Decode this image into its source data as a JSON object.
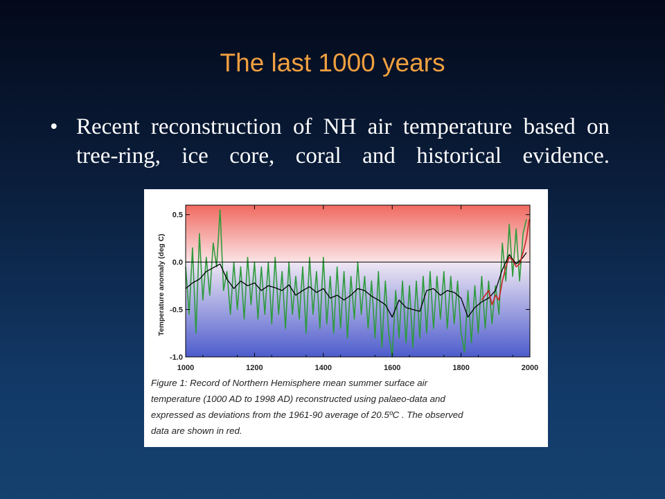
{
  "slide": {
    "title": "The last 1000 years",
    "bullet": "Recent reconstruction of NH air temperature based on tree-ring, ice core, coral and historical evidence.",
    "bullet_symbol": "•"
  },
  "figure": {
    "caption_lines": [
      "Figure 1:  Record of Northern Hemisphere mean summer surface air",
      "temperature (1000 AD to 1998 AD) reconstructed using palaeo-data and",
      "expressed as deviations from the 1961-90 average of 20.5ºC . The observed",
      "data are shown in red."
    ]
  },
  "chart_data": {
    "type": "line",
    "xlabel": "",
    "ylabel": "Temperature anomaly (deg C)",
    "xlim": [
      1000,
      2000
    ],
    "ylim": [
      -1.0,
      0.6
    ],
    "x_ticks": [
      "1000",
      "1200",
      "1400",
      "1600",
      "1800",
      "2000"
    ],
    "y_ticks": [
      "0.5",
      "0.0",
      "-0.5",
      "-1.0"
    ],
    "colors": {
      "annual": "#2e9a3c",
      "smoothed": "#000000",
      "observed": "#cc2222",
      "warm": "#f07a72",
      "cool": "#5a6ad0"
    },
    "series": [
      {
        "key": "smoothed",
        "x": [
          1000,
          1020,
          1040,
          1060,
          1080,
          1100,
          1120,
          1140,
          1160,
          1180,
          1200,
          1220,
          1240,
          1260,
          1280,
          1300,
          1320,
          1340,
          1360,
          1380,
          1400,
          1420,
          1440,
          1460,
          1480,
          1500,
          1520,
          1540,
          1560,
          1580,
          1600,
          1620,
          1640,
          1660,
          1680,
          1700,
          1720,
          1740,
          1760,
          1780,
          1800,
          1820,
          1840,
          1860,
          1880,
          1900,
          1920,
          1940,
          1960,
          1980,
          1990
        ],
        "y": [
          -0.28,
          -0.22,
          -0.18,
          -0.1,
          -0.06,
          -0.02,
          -0.18,
          -0.28,
          -0.2,
          -0.25,
          -0.22,
          -0.3,
          -0.25,
          -0.27,
          -0.3,
          -0.24,
          -0.35,
          -0.3,
          -0.26,
          -0.32,
          -0.28,
          -0.38,
          -0.35,
          -0.4,
          -0.35,
          -0.28,
          -0.3,
          -0.36,
          -0.4,
          -0.45,
          -0.58,
          -0.4,
          -0.48,
          -0.5,
          -0.52,
          -0.3,
          -0.28,
          -0.35,
          -0.3,
          -0.32,
          -0.38,
          -0.58,
          -0.48,
          -0.42,
          -0.38,
          -0.3,
          -0.08,
          0.08,
          -0.02,
          0.05,
          0.1
        ]
      },
      {
        "key": "annual",
        "x": [
          1000,
          1010,
          1020,
          1030,
          1040,
          1050,
          1060,
          1070,
          1080,
          1090,
          1100,
          1110,
          1120,
          1130,
          1140,
          1150,
          1160,
          1170,
          1180,
          1190,
          1200,
          1210,
          1220,
          1230,
          1240,
          1250,
          1260,
          1270,
          1280,
          1290,
          1300,
          1310,
          1320,
          1330,
          1340,
          1350,
          1360,
          1370,
          1380,
          1390,
          1400,
          1410,
          1420,
          1430,
          1440,
          1450,
          1460,
          1470,
          1480,
          1490,
          1500,
          1510,
          1520,
          1530,
          1540,
          1550,
          1560,
          1570,
          1580,
          1590,
          1600,
          1610,
          1620,
          1630,
          1640,
          1650,
          1660,
          1670,
          1680,
          1690,
          1700,
          1710,
          1720,
          1730,
          1740,
          1750,
          1760,
          1770,
          1780,
          1790,
          1800,
          1810,
          1820,
          1830,
          1840,
          1850,
          1860,
          1870,
          1880,
          1890,
          1900,
          1910,
          1920,
          1930,
          1940,
          1950,
          1960,
          1970,
          1980,
          1990
        ],
        "y": [
          -0.05,
          -0.55,
          0.15,
          -0.75,
          0.3,
          -0.4,
          0.05,
          -0.35,
          0.2,
          -0.05,
          0.55,
          -0.3,
          -0.1,
          -0.55,
          0.0,
          -0.5,
          -0.05,
          -0.6,
          0.05,
          -0.45,
          0.0,
          -0.6,
          -0.05,
          -0.55,
          0.0,
          -0.65,
          0.05,
          -0.55,
          -0.1,
          -0.7,
          0.0,
          -0.55,
          -0.15,
          -0.6,
          -0.05,
          -0.75,
          0.05,
          -0.55,
          -0.1,
          -0.7,
          0.05,
          -0.65,
          -0.15,
          -0.75,
          -0.05,
          -0.7,
          -0.1,
          -0.8,
          -0.15,
          -0.6,
          0.0,
          -0.55,
          -0.15,
          -0.7,
          -0.2,
          -0.8,
          -0.1,
          -0.9,
          -0.2,
          -0.75,
          -1.0,
          -0.3,
          -0.8,
          -0.2,
          -0.85,
          -0.25,
          -0.9,
          -0.2,
          -0.8,
          -0.15,
          -0.75,
          -0.1,
          -0.7,
          -0.15,
          -0.6,
          -0.1,
          -0.7,
          -0.15,
          -0.65,
          -0.2,
          -0.75,
          -0.95,
          -0.3,
          -0.85,
          -0.25,
          -0.75,
          -0.15,
          -0.7,
          -0.2,
          -0.65,
          -0.25,
          -0.55,
          0.2,
          -0.2,
          0.4,
          -0.15,
          0.35,
          -0.2,
          0.3,
          0.45
        ]
      },
      {
        "key": "observed",
        "x": [
          1860,
          1870,
          1880,
          1890,
          1900,
          1910,
          1920,
          1930,
          1940,
          1950,
          1960,
          1970,
          1980,
          1990,
          1998
        ],
        "y": [
          -0.4,
          -0.35,
          -0.3,
          -0.45,
          -0.35,
          -0.4,
          -0.2,
          -0.05,
          0.05,
          0.02,
          -0.05,
          -0.02,
          0.1,
          0.25,
          0.45
        ]
      }
    ]
  }
}
